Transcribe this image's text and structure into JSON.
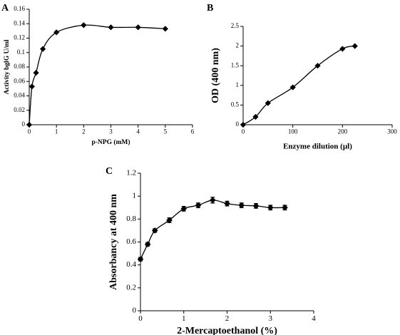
{
  "chart_data": [
    {
      "panel": "A",
      "type": "line",
      "marker": "diamond",
      "xlabel": "p-NPG (mM)",
      "ylabel": "Activity bglG U/ml",
      "xlim": [
        0,
        6
      ],
      "ylim": [
        0,
        0.16
      ],
      "xticks": [
        0,
        1,
        2,
        3,
        4,
        5,
        6
      ],
      "yticks": [
        0,
        0.02,
        0.04,
        0.06,
        0.08,
        0.1,
        0.12,
        0.14,
        0.16
      ],
      "ytick_labels": [
        "0",
        "0.02",
        "0.04",
        "0.06",
        "0.08",
        "0.1",
        "0.12",
        "0.14",
        "0.16"
      ],
      "grid": false,
      "x": [
        0,
        0.1,
        0.25,
        0.5,
        1,
        2,
        3,
        4,
        5
      ],
      "y": [
        0,
        0.053,
        0.072,
        0.105,
        0.128,
        0.138,
        0.135,
        0.135,
        0.133
      ]
    },
    {
      "panel": "B",
      "type": "line",
      "marker": "diamond",
      "xlabel": "Enzyme dilution (µl)",
      "ylabel": "OD (400 nm)",
      "xlim": [
        0,
        300
      ],
      "ylim": [
        0,
        2.5
      ],
      "xticks": [
        0,
        100,
        200,
        300
      ],
      "yticks": [
        0,
        0.5,
        1,
        1.5,
        2,
        2.5
      ],
      "ytick_labels": [
        "0",
        "0.5",
        "1",
        "1.5",
        "2",
        "2.5"
      ],
      "grid": false,
      "x": [
        0,
        25,
        50,
        100,
        150,
        200,
        225
      ],
      "y": [
        0,
        0.2,
        0.55,
        0.95,
        1.5,
        1.93,
        2.0
      ]
    },
    {
      "panel": "C",
      "type": "line",
      "marker": "diamond",
      "error_bars": true,
      "xlabel": "2-Mercaptoethanol (%)",
      "ylabel": "Absorbancy at 400 nm",
      "xlim": [
        0,
        4
      ],
      "ylim": [
        0,
        1.2
      ],
      "xticks": [
        0,
        1,
        2,
        3,
        4
      ],
      "yticks": [
        0,
        0.2,
        0.4,
        0.6,
        0.8,
        1,
        1.2
      ],
      "ytick_labels": [
        "0",
        "0.2",
        "0.4",
        "0.6",
        "0.8",
        "1",
        "1.2"
      ],
      "grid": false,
      "x": [
        0,
        0.167,
        0.333,
        0.667,
        1,
        1.333,
        1.667,
        2,
        2.333,
        2.667,
        3,
        3.333
      ],
      "y": [
        0.45,
        0.58,
        0.7,
        0.79,
        0.89,
        0.92,
        0.965,
        0.935,
        0.92,
        0.915,
        0.9,
        0.9
      ],
      "err": [
        0.015,
        0.015,
        0.015,
        0.02,
        0.02,
        0.02,
        0.025,
        0.02,
        0.02,
        0.02,
        0.02,
        0.02
      ]
    }
  ]
}
